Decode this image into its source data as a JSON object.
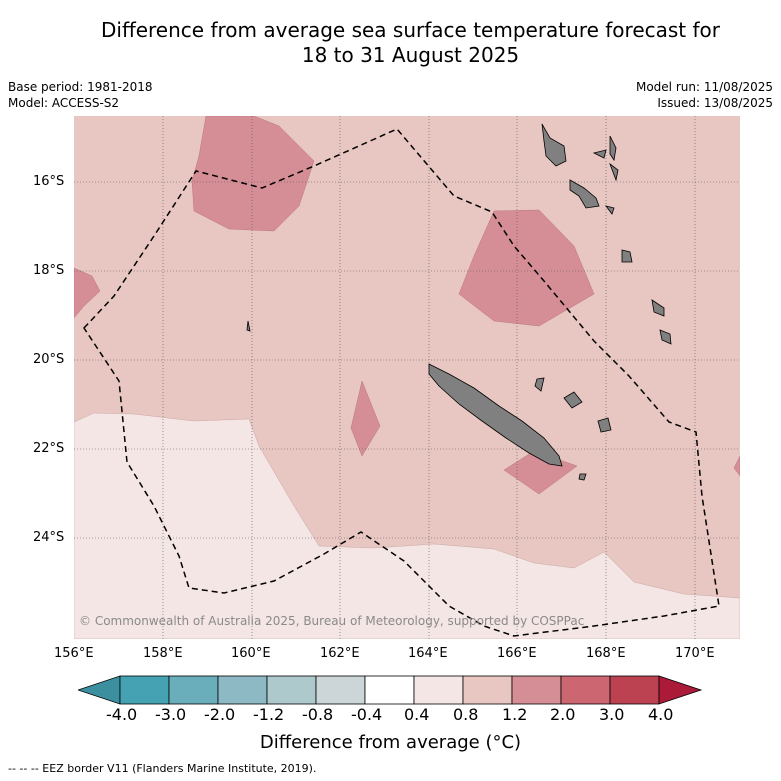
{
  "title_line1": "Difference from average sea surface temperature forecast for",
  "title_line2": "18 to 31 August 2025",
  "base_period": "Base period: 1981-2018",
  "model": "Model: ACCESS-S2",
  "model_run": "Model run: 11/08/2025",
  "issued": "Issued: 13/08/2025",
  "copyright": "© Commonwealth of Australia 2025, Bureau of Meteorology, supported by COSPPac",
  "x_ticks": [
    "156°E",
    "158°E",
    "160°E",
    "162°E",
    "164°E",
    "166°E",
    "168°E",
    "170°E"
  ],
  "y_ticks": [
    "16°S",
    "18°S",
    "20°S",
    "22°S",
    "24°S"
  ],
  "colorbar": {
    "title": "Difference from average (°C)",
    "labels": [
      "-4.0",
      "-3.0",
      "-2.0",
      "-1.2",
      "-0.8",
      "-0.4",
      "0.4",
      "0.8",
      "1.2",
      "2.0",
      "3.0",
      "4.0"
    ],
    "colors": [
      "#3b8f9f",
      "#45a2b3",
      "#6aaebc",
      "#8db9c4",
      "#adc9cc",
      "#ccd6d8",
      "#ffffff",
      "#f4e6e4",
      "#e8c6c1",
      "#d58e96",
      "#cc6671",
      "#bc4252",
      "#ab1a39"
    ]
  },
  "legend_footer": "-- -- -- EEZ border V11 (Flanders Marine Institute, 2019)."
}
